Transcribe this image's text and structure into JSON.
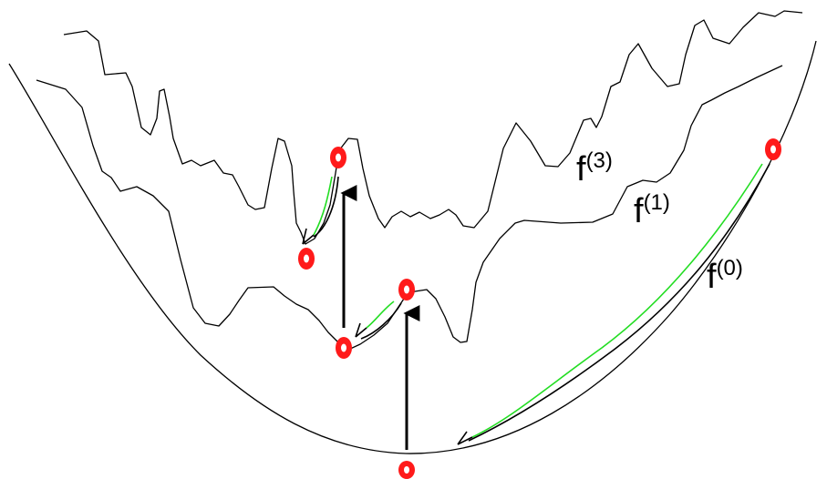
{
  "labels": {
    "f3": {
      "base": "f",
      "sup": "(3)"
    },
    "f1": {
      "base": "f",
      "sup": "(1)"
    },
    "f0": {
      "base": "f",
      "sup": "(0)"
    }
  },
  "colors": {
    "curve": "#000000",
    "point": "#ff1a1a",
    "descent_path": "#22dd22",
    "jump_arrow": "#000000"
  }
}
